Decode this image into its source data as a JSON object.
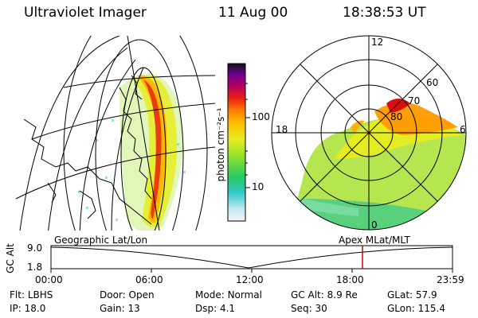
{
  "header": {
    "title": "Ultraviolet Imager",
    "date": "11 Aug 00",
    "time": "18:38:53 UT"
  },
  "colorbar": {
    "label": "photon cm⁻²s⁻¹",
    "ticks": [
      "100",
      "10"
    ],
    "scale": "log"
  },
  "polar_plot": {
    "mlt_labels": [
      "12",
      "18",
      "6",
      "0"
    ],
    "mlat_labels": [
      "60",
      "70",
      "80"
    ]
  },
  "map_labels": {
    "left": "Geographic Lat/Lon",
    "right": "Apex MLat/MLT"
  },
  "altitude_plot": {
    "ylabel": "GC Alt",
    "yticks": [
      "9.0",
      "1.8"
    ],
    "xticks": [
      "00:00",
      "06:00",
      "12:00",
      "18:00",
      "23:59"
    ],
    "current_time_marker": "18:38"
  },
  "info": {
    "row1": [
      {
        "label": "Flt:",
        "value": "LBHS"
      },
      {
        "label": "Door:",
        "value": "Open"
      },
      {
        "label": "Mode:",
        "value": "Normal"
      },
      {
        "label": "GC Alt:",
        "value": "8.9 Re"
      },
      {
        "label": "GLat:",
        "value": "57.9"
      }
    ],
    "row2": [
      {
        "label": "IP:",
        "value": "18.0"
      },
      {
        "label": "Gain:",
        "value": "13"
      },
      {
        "label": "Dsp:",
        "value": "4.1"
      },
      {
        "label": "Seq:",
        "value": "30"
      },
      {
        "label": "GLon:",
        "value": "115.4"
      }
    ]
  },
  "colors": {
    "marker": "#cc0000"
  }
}
